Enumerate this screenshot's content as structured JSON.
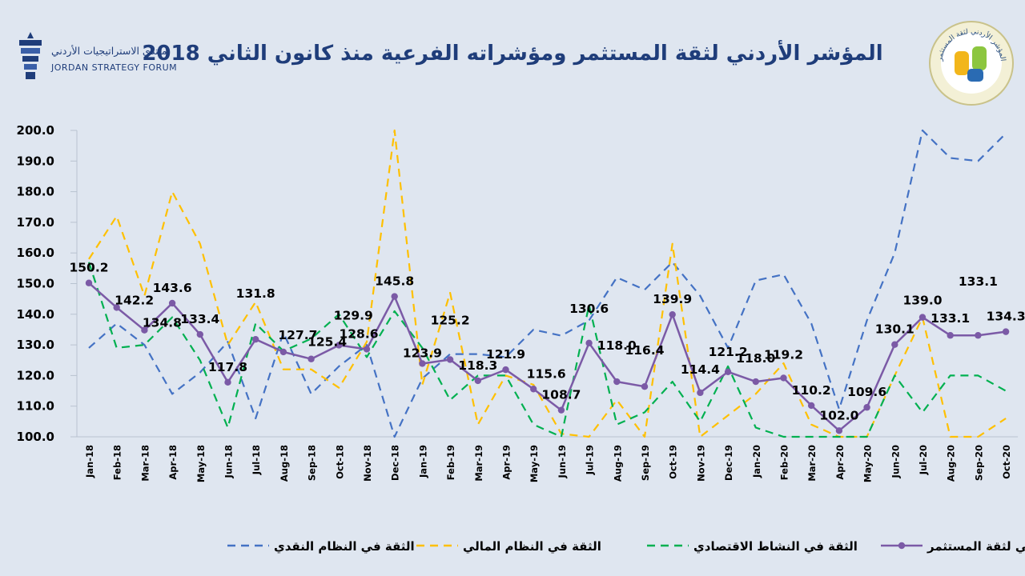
{
  "header": {
    "title": "المؤشر الأردني لثقة المستثمر ومؤشراته  الفرعية منذ كانون الثاني 2018",
    "logo_left_ar": "منتدى الاستراتيجيات الأردني",
    "logo_left_en": "JORDAN STRATEGY FORUM",
    "logo_right_text": "المؤشر الأردني لثقة المستثمر"
  },
  "colors": {
    "monetary": "#4472c4",
    "financial": "#ffc000",
    "economic": "#00b050",
    "index": "#7b5aa6",
    "axis_text": "#000000"
  },
  "chart_data": {
    "type": "line",
    "title": "المؤشر الأردني لثقة المستثمر ومؤشراته  الفرعية منذ كانون الثاني 2018",
    "ylim": [
      100,
      200
    ],
    "yticks": [
      "100.0",
      "110.0",
      "120.0",
      "130.0",
      "140.0",
      "150.0",
      "160.0",
      "170.0",
      "180.0",
      "190.0",
      "200.0"
    ],
    "categories": [
      "Jan-18",
      "Feb-18",
      "Mar-18",
      "Apr-18",
      "May-18",
      "Jun-18",
      "Jul-18",
      "Aug-18",
      "Sep-18",
      "Oct-18",
      "Nov-18",
      "Dec-18",
      "Jan-19",
      "Feb-19",
      "Mar-19",
      "Apr-19",
      "May-19",
      "Jun-19",
      "Jul-19",
      "Aug-19",
      "Sep-19",
      "Oct-19",
      "Nov-19",
      "Dec-19",
      "Jan-20",
      "Feb-20",
      "Mar-20",
      "Apr-20",
      "May-20",
      "Jun-20",
      "Jul-20",
      "Aug-20",
      "Sep-20",
      "Oct-20"
    ],
    "legend_position": "bottom",
    "series": [
      {
        "key": "monetary",
        "name": "الثقة في النظام النقدي",
        "style": "dashed",
        "values": [
          129,
          137,
          130,
          114,
          121,
          131,
          106,
          134,
          114,
          123,
          130,
          100,
          119,
          127,
          127,
          126,
          135,
          133,
          138,
          152,
          148,
          157,
          146,
          129,
          151,
          153,
          137,
          109,
          138,
          160,
          200,
          191,
          190,
          199
        ]
      },
      {
        "key": "financial",
        "name": "الثقة في النظام المالي",
        "style": "dashed",
        "values": [
          158,
          172,
          146,
          180,
          163,
          130,
          144,
          122,
          122,
          116,
          131,
          200,
          117,
          147,
          104,
          120,
          117,
          101,
          100,
          112,
          100,
          163,
          100,
          107,
          114,
          124,
          104,
          100,
          100,
          120,
          139,
          100,
          100,
          106
        ]
      },
      {
        "key": "economic",
        "name": "الثقة في النشاط الاقتصادي",
        "style": "dashed",
        "values": [
          157,
          129,
          130,
          139,
          125,
          103,
          137,
          128,
          132,
          140,
          126,
          141,
          129,
          112,
          120,
          120,
          104,
          100,
          143,
          104,
          108,
          118,
          105,
          123,
          103,
          100,
          100,
          100,
          100,
          120,
          108,
          120,
          120,
          115
        ]
      },
      {
        "key": "index",
        "name": "المؤشر الأردني لثقة المستثمر",
        "style": "solid-markers",
        "values": [
          150.2,
          142.2,
          134.8,
          143.6,
          133.4,
          117.8,
          131.8,
          127.7,
          125.4,
          129.9,
          128.6,
          145.8,
          123.9,
          125.2,
          118.3,
          121.9,
          115.6,
          108.7,
          130.6,
          118.0,
          116.4,
          139.9,
          114.4,
          121.2,
          118.0,
          119.2,
          110.2,
          102.0,
          109.6,
          130.1,
          139.0,
          133.1,
          133.1,
          134.3
        ],
        "labels": [
          "150.2",
          "142.2",
          "134.8",
          "143.6",
          "133.4",
          "117.8",
          "131.8",
          "127.7",
          "125.4",
          "129.9",
          "128.6",
          "145.8",
          "123.9",
          "125.2",
          "118.3",
          "121.9",
          "115.6",
          "108.7",
          "130.6",
          "118.0",
          "116.4",
          "139.9",
          "114.4",
          "121.2",
          "118.0",
          "119.2",
          "110.2",
          "102.0",
          "109.6",
          "130.1",
          "139.0",
          "133.1",
          "133.1",
          "134.3"
        ]
      }
    ]
  }
}
